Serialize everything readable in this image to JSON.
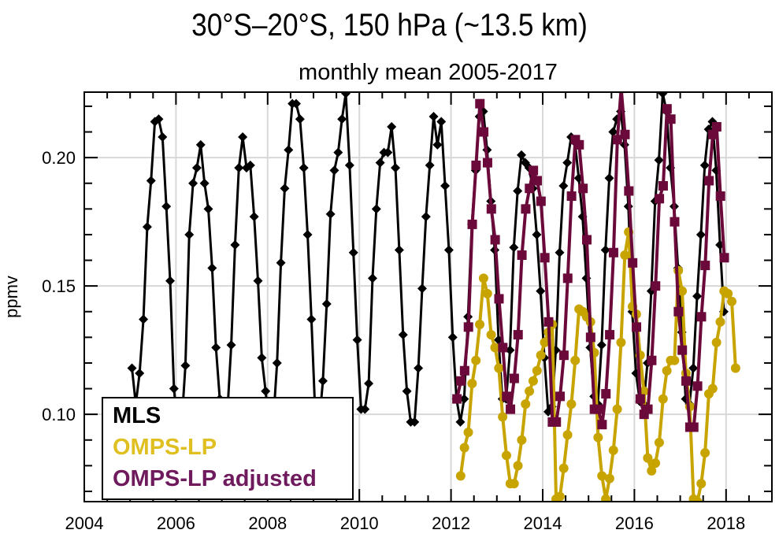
{
  "chart_data": {
    "type": "line",
    "title": "30°S–20°S, 150 hPa (~13.5 km)",
    "subtitle": "monthly mean 2005-2017",
    "xlabel": "",
    "ylabel": "ppmv",
    "xlim": [
      2004,
      2019
    ],
    "ylim": [
      0.066,
      0.2255
    ],
    "x_ticks": [
      2004,
      2006,
      2008,
      2010,
      2012,
      2014,
      2016,
      2018
    ],
    "x_tick_labels": [
      "2004",
      "2006",
      "2008",
      "2010",
      "2012",
      "2014",
      "2016",
      "2018"
    ],
    "y_ticks": [
      0.1,
      0.15,
      0.2
    ],
    "y_tick_labels": [
      "0.10",
      "0.15",
      "0.20"
    ],
    "grid": true,
    "legend_position": "bottom-left",
    "series": [
      {
        "name": "MLS",
        "color": "#000000",
        "marker": "diamond",
        "x_start": 2005.04,
        "x_step": 0.0833,
        "values": [
          0.118,
          0.104,
          0.116,
          0.137,
          0.173,
          0.191,
          0.214,
          0.215,
          0.208,
          0.181,
          0.152,
          0.11,
          0.094,
          0.096,
          0.119,
          0.17,
          0.19,
          0.196,
          0.205,
          0.19,
          0.18,
          0.157,
          0.126,
          0.106,
          0.095,
          0.101,
          0.127,
          0.166,
          0.196,
          0.208,
          0.196,
          0.197,
          0.177,
          0.152,
          0.122,
          0.109,
          0.094,
          0.097,
          0.12,
          0.159,
          0.188,
          0.203,
          0.221,
          0.221,
          0.215,
          0.196,
          0.17,
          0.137,
          0.1,
          0.096,
          0.113,
          0.143,
          0.178,
          0.195,
          0.202,
          0.215,
          0.225,
          0.197,
          0.163,
          0.129,
          0.102,
          0.102,
          0.112,
          0.153,
          0.18,
          0.198,
          0.202,
          0.202,
          0.212,
          0.196,
          0.164,
          0.131,
          0.109,
          0.097,
          0.097,
          0.118,
          0.149,
          0.177,
          0.197,
          0.216,
          0.205,
          0.214,
          0.189,
          0.164,
          0.13,
          0.106,
          0.097,
          0.106,
          0.138,
          0.174,
          0.195,
          0.216,
          0.218,
          0.203,
          0.183,
          0.164,
          0.129,
          0.106,
          0.106,
          0.125,
          0.165,
          0.187,
          0.201,
          0.198,
          0.196,
          0.188,
          0.17,
          0.148,
          0.122,
          0.101,
          0.103,
          0.125,
          0.163,
          0.189,
          0.198,
          0.208,
          0.206,
          0.192,
          0.177,
          0.153,
          0.126,
          0.107,
          0.104,
          0.127,
          0.164,
          0.192,
          0.21,
          0.215,
          0.218,
          0.205,
          0.181,
          0.14,
          0.116,
          0.105,
          0.104,
          0.12,
          0.148,
          0.183,
          0.199,
          0.225,
          0.218,
          0.196,
          0.181,
          0.157,
          0.132,
          0.106,
          0.104,
          0.118,
          0.146,
          0.17,
          0.197,
          0.211,
          0.214,
          0.195,
          0.166,
          0.14
        ]
      },
      {
        "name": "OMPS-LP",
        "color": "#c8a400",
        "marker": "circle",
        "x_start": 2012.21,
        "x_step": 0.0833,
        "values": [
          0.076,
          0.087,
          0.093,
          0.112,
          0.121,
          0.135,
          0.153,
          0.147,
          0.131,
          0.126,
          0.118,
          0.099,
          0.084,
          0.073,
          0.073,
          0.08,
          0.09,
          0.104,
          0.109,
          0.113,
          0.117,
          0.123,
          0.128,
          0.132,
          0.135,
          0.067,
          0.068,
          0.079,
          0.092,
          0.104,
          0.121,
          0.141,
          0.14,
          0.138,
          0.136,
          0.124,
          0.091,
          0.076,
          0.067,
          0.075,
          0.086,
          0.102,
          0.128,
          0.162,
          0.171,
          0.142,
          0.139,
          0.123,
          0.109,
          0.083,
          0.078,
          0.081,
          0.089,
          0.106,
          0.117,
          0.121,
          0.121,
          0.156,
          0.148,
          0.116,
          0.103,
          0.067,
          0.066,
          0.073,
          0.085,
          0.108,
          0.11,
          0.128,
          0.136,
          0.148,
          0.147,
          0.144,
          0.118
        ]
      },
      {
        "name": "OMPS-LP adjusted",
        "color": "#6b0a3a",
        "marker": "square",
        "x_start": 2012.13,
        "x_step": 0.0833,
        "values": [
          0.106,
          0.113,
          0.117,
          0.134,
          0.174,
          0.197,
          0.221,
          0.21,
          0.198,
          0.18,
          0.168,
          0.145,
          0.126,
          0.107,
          0.102,
          0.114,
          0.131,
          0.162,
          0.18,
          0.188,
          0.195,
          0.191,
          0.183,
          0.161,
          0.136,
          0.097,
          0.097,
          0.107,
          0.123,
          0.153,
          0.185,
          0.207,
          0.205,
          0.188,
          0.168,
          0.13,
          0.102,
          0.102,
          0.096,
          0.108,
          0.131,
          0.163,
          0.207,
          0.227,
          0.209,
          0.187,
          0.159,
          0.134,
          0.106,
          0.1,
          0.102,
          0.121,
          0.15,
          0.184,
          0.189,
          0.219,
          0.215,
          0.175,
          0.14,
          0.125,
          0.113,
          0.095,
          0.095,
          0.111,
          0.138,
          0.158,
          0.191,
          0.209,
          0.212,
          0.185,
          0.161
        ]
      }
    ]
  }
}
